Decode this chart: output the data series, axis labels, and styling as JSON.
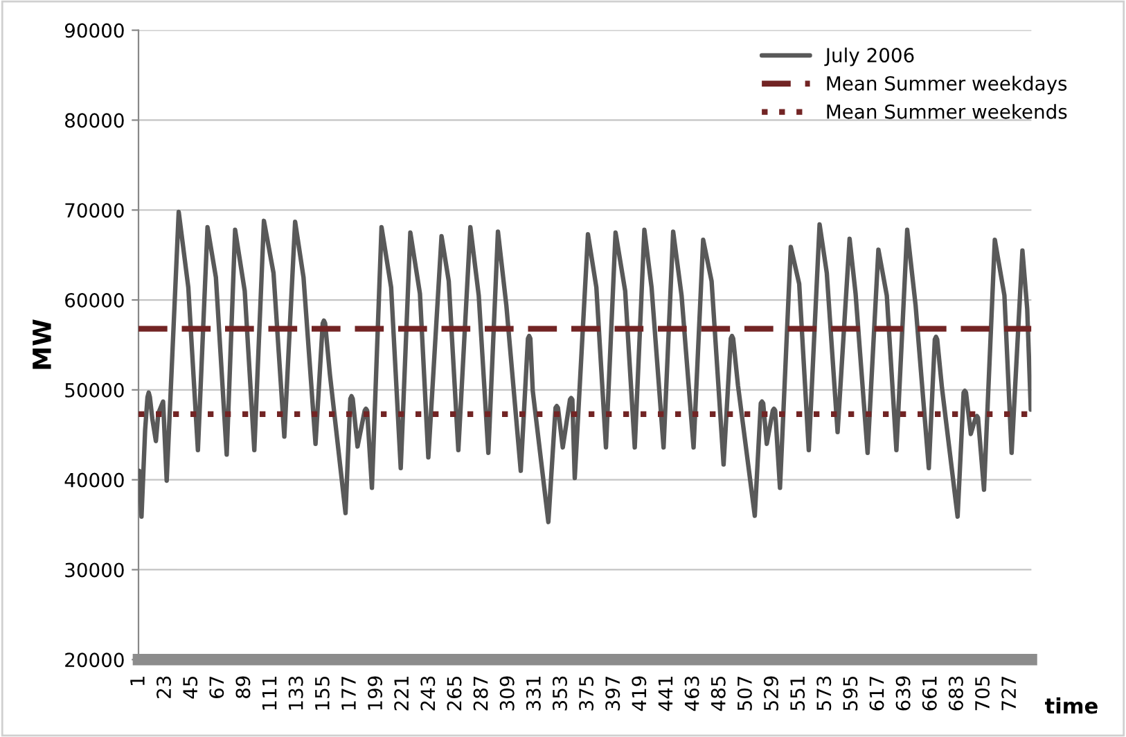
{
  "chart_data": {
    "type": "line",
    "xlabel": "time",
    "ylabel": "MW",
    "series": [
      {
        "name": "July 2006",
        "color": "#595959",
        "x": [
          1,
          3,
          6,
          8,
          9,
          10,
          12,
          15,
          17,
          21,
          24,
          34,
          42,
          50,
          58,
          65,
          74,
          81,
          89,
          97,
          105,
          113,
          122,
          131,
          138,
          148,
          154,
          155,
          156,
          160,
          173,
          177,
          178,
          179,
          183,
          189,
          190,
          191,
          195,
          203,
          211,
          219,
          227,
          235,
          242,
          253,
          259,
          267,
          277,
          284,
          292,
          300,
          307,
          319,
          325,
          326,
          327,
          329,
          342,
          348,
          349,
          350,
          354,
          360,
          361,
          362,
          364,
          375,
          382,
          390,
          398,
          406,
          414,
          422,
          428,
          438,
          446,
          453,
          463,
          471,
          478,
          488,
          494,
          495,
          496,
          500,
          514,
          519,
          520,
          521,
          524,
          529,
          530,
          531,
          535,
          544,
          551,
          559,
          568,
          574,
          583,
          593,
          598,
          608,
          617,
          624,
          632,
          641,
          648,
          659,
          664,
          665,
          666,
          670,
          683,
          688,
          689,
          690,
          694,
          698,
          699,
          700,
          705,
          714,
          722,
          728,
          737,
          741,
          744
        ],
        "values": [
          41000,
          35900,
          45500,
          49200,
          49700,
          49200,
          46800,
          44300,
          47400,
          48700,
          39900,
          69800,
          61400,
          43300,
          68100,
          62500,
          42800,
          67800,
          61000,
          43300,
          68800,
          63000,
          44800,
          68700,
          62500,
          44000,
          57400,
          57700,
          57400,
          51700,
          36300,
          49000,
          49300,
          49000,
          43700,
          47700,
          47900,
          47700,
          39100,
          68100,
          61400,
          41300,
          67500,
          60700,
          42500,
          67100,
          62100,
          43300,
          68100,
          60500,
          43000,
          67600,
          59400,
          41000,
          55700,
          56000,
          55700,
          49900,
          35300,
          48000,
          48200,
          48000,
          43600,
          48900,
          49100,
          48900,
          40200,
          67300,
          61400,
          43600,
          67500,
          61000,
          43600,
          67800,
          61400,
          43600,
          67600,
          60500,
          43600,
          66700,
          62100,
          41700,
          55700,
          56000,
          55700,
          50500,
          36000,
          48500,
          48700,
          48500,
          44000,
          47700,
          47900,
          47700,
          39100,
          65900,
          61800,
          43300,
          68400,
          63000,
          45300,
          66800,
          60700,
          43000,
          65600,
          60500,
          43300,
          67800,
          59400,
          41300,
          55600,
          55900,
          55600,
          50200,
          35900,
          49700,
          49900,
          49700,
          45100,
          46900,
          47100,
          46900,
          38900,
          66700,
          60500,
          43000,
          65500,
          59000,
          47800
        ]
      }
    ],
    "xlim": [
      0.5,
      744.5
    ],
    "xticks": [
      1,
      23,
      45,
      67,
      89,
      111,
      133,
      155,
      177,
      199,
      221,
      243,
      265,
      287,
      309,
      331,
      353,
      375,
      397,
      419,
      441,
      463,
      485,
      507,
      529,
      551,
      573,
      595,
      617,
      639,
      661,
      683,
      705,
      727
    ],
    "ylim": [
      20000,
      90000
    ],
    "yticks": [
      20000,
      30000,
      40000,
      50000,
      60000,
      70000,
      80000,
      90000
    ],
    "grid": "y",
    "legend": "top right",
    "marker": "none",
    "line_style": "solid",
    "ref_lines": [
      {
        "axis": "y",
        "value": 56800,
        "label": "Mean Summer weekdays",
        "color": "#722424",
        "line_style": "dashed"
      },
      {
        "axis": "y",
        "value": 47300,
        "label": "Mean Summer weekends",
        "color": "#722424",
        "line_style": "dotted"
      }
    ]
  }
}
